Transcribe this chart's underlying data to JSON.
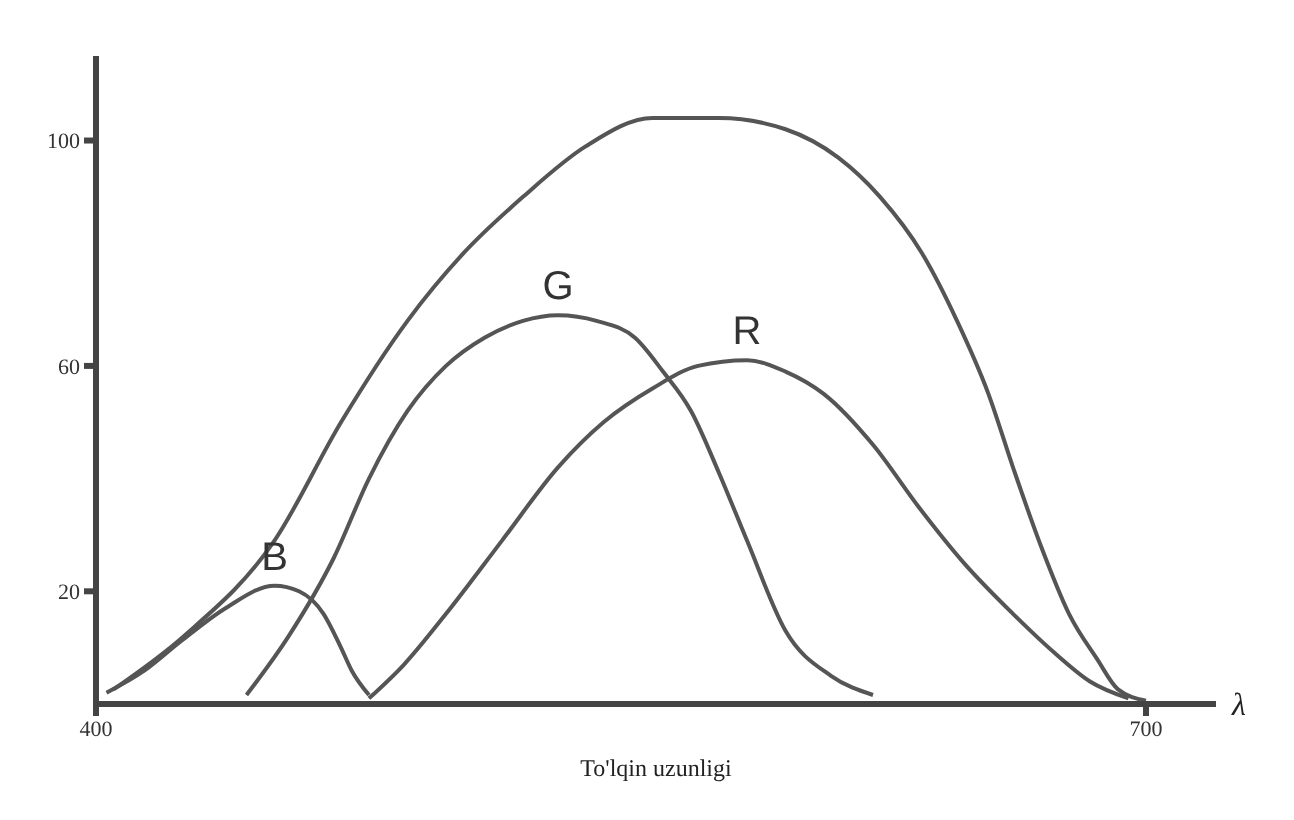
{
  "chart_data": {
    "type": "line",
    "xlabel": "To'lqin uzunligi",
    "annotations": [
      "λ"
    ],
    "xlim": [
      400,
      720
    ],
    "ylim": [
      0,
      115
    ],
    "xticks": [
      400,
      700
    ],
    "yticks": [
      20,
      60,
      100
    ],
    "grid": false,
    "legend": false,
    "marker": "none",
    "line_style": "solid",
    "series": [
      {
        "color": "#555555",
        "x": [
          405,
          425,
          451,
          470,
          489,
          505,
          522,
          540,
          559,
          578,
          597,
          612,
          624,
          636,
          646,
          655,
          662,
          670,
          678,
          686,
          692,
          700
        ],
        "values": [
          2.6,
          12,
          29,
          50,
          68,
          80,
          90,
          99,
          104,
          104,
          102,
          97,
          90,
          80,
          68,
          55,
          42,
          28,
          16,
          8,
          2.6,
          0.6
        ]
      },
      {
        "name": "B",
        "color": "#555555",
        "x": [
          403,
          414,
          424,
          437,
          451,
          458,
          465,
          470,
          473,
          478
        ],
        "values": [
          2,
          6,
          11,
          17,
          21,
          20,
          16,
          10,
          6,
          1.6
        ]
      },
      {
        "name": "G",
        "color": "#555555",
        "x": [
          443,
          455,
          468,
          478,
          489,
          500,
          511,
          522,
          532,
          543,
          554,
          562,
          570,
          578,
          586,
          597,
          610,
          622
        ],
        "values": [
          1.6,
          12,
          26,
          40,
          52,
          60,
          65,
          68,
          69,
          68,
          65,
          59,
          52,
          41,
          29,
          13,
          5,
          1.6
        ]
      },
      {
        "name": "R",
        "color": "#555555",
        "x": [
          478,
          488,
          500,
          516,
          532,
          545,
          559,
          572,
          586,
          597,
          608,
          622,
          635,
          648,
          662,
          674,
          684,
          695
        ],
        "values": [
          1,
          7,
          16,
          29,
          42,
          50,
          56,
          60,
          61,
          59,
          55,
          46,
          35,
          25,
          16,
          9,
          4,
          1
        ]
      }
    ]
  }
}
